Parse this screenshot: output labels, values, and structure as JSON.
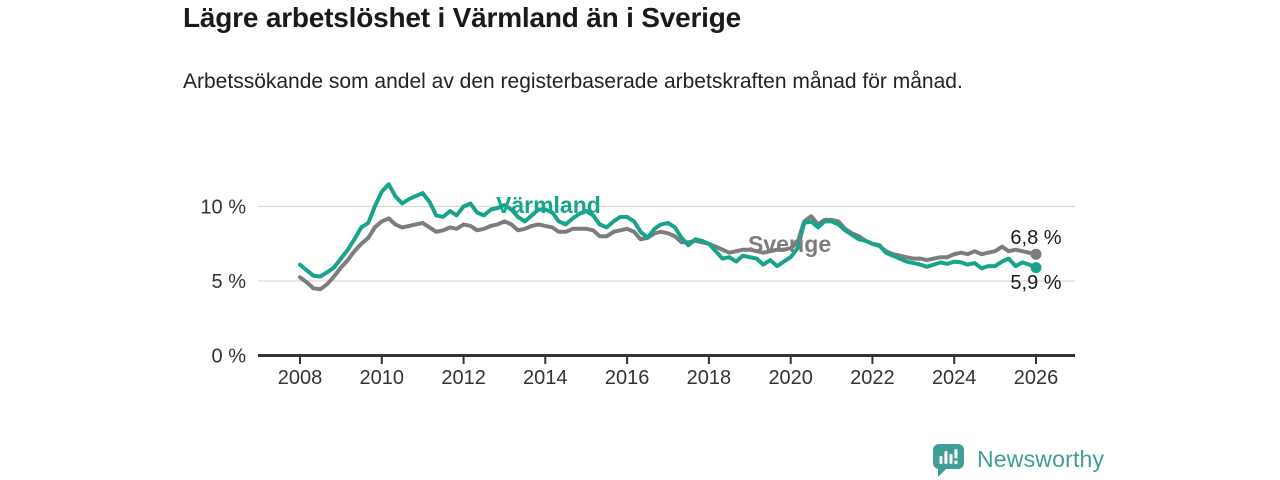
{
  "chart_data": {
    "type": "line",
    "title": "Lägre arbetslöshet i Värmland än i Sverige",
    "subtitle": "Arbetssökande som andel av den registerbaserade arbetskraften månad för månad.",
    "x_unit": "year, monthly observations",
    "xlim": [
      2007.0,
      2027.0
    ],
    "ylim": [
      0,
      12.5
    ],
    "grid": "horizontal gridlines at 5 % and 10 %, solid baseline at 0 %",
    "legend_position": "inline labels on lines",
    "x_tick_labels": [
      "2008",
      "2010",
      "2012",
      "2014",
      "2016",
      "2018",
      "2020",
      "2022",
      "2024",
      "2026"
    ],
    "x_ticks": [
      2008,
      2010,
      2012,
      2014,
      2016,
      2018,
      2020,
      2022,
      2024,
      2026
    ],
    "y_tick_labels": [
      "0 %",
      "5 %",
      "10 %"
    ],
    "y_ticks": [
      0,
      5,
      10
    ],
    "x": [
      2008,
      2008.17,
      2008.33,
      2008.5,
      2008.67,
      2008.83,
      2009,
      2009.17,
      2009.33,
      2009.5,
      2009.67,
      2009.83,
      2010,
      2010.17,
      2010.33,
      2010.5,
      2010.67,
      2010.83,
      2011,
      2011.17,
      2011.33,
      2011.5,
      2011.67,
      2011.83,
      2012,
      2012.17,
      2012.33,
      2012.5,
      2012.67,
      2012.83,
      2013,
      2013.17,
      2013.33,
      2013.5,
      2013.67,
      2013.83,
      2014,
      2014.17,
      2014.33,
      2014.5,
      2014.67,
      2014.83,
      2015,
      2015.17,
      2015.33,
      2015.5,
      2015.67,
      2015.83,
      2016,
      2016.17,
      2016.33,
      2016.5,
      2016.67,
      2016.83,
      2017,
      2017.17,
      2017.33,
      2017.5,
      2017.67,
      2017.83,
      2018,
      2018.17,
      2018.33,
      2018.5,
      2018.67,
      2018.83,
      2019,
      2019.17,
      2019.33,
      2019.5,
      2019.67,
      2019.83,
      2020,
      2020.17,
      2020.33,
      2020.5,
      2020.67,
      2020.83,
      2021,
      2021.17,
      2021.33,
      2021.5,
      2021.67,
      2021.83,
      2022,
      2022.17,
      2022.33,
      2022.5,
      2022.67,
      2022.83,
      2023,
      2023.17,
      2023.33,
      2023.5,
      2023.67,
      2023.83,
      2024,
      2024.17,
      2024.33,
      2024.5,
      2024.67,
      2024.83,
      2025,
      2025.17,
      2025.33,
      2025.5,
      2025.67,
      2025.83,
      2026
    ],
    "series": [
      {
        "name": "Värmland",
        "color": "#17a48b",
        "end_value": 5.9,
        "end_label": "5,9 %",
        "values": [
          6.1,
          5.7,
          5.35,
          5.3,
          5.6,
          5.9,
          6.5,
          7.1,
          7.8,
          8.6,
          8.9,
          10.0,
          11.0,
          11.5,
          10.7,
          10.2,
          10.5,
          10.7,
          10.9,
          10.3,
          9.4,
          9.3,
          9.7,
          9.4,
          10.0,
          10.2,
          9.6,
          9.4,
          9.8,
          9.9,
          10.1,
          9.8,
          9.3,
          9.0,
          9.4,
          9.8,
          9.8,
          9.6,
          9.0,
          8.8,
          9.2,
          9.5,
          9.7,
          9.4,
          8.8,
          8.6,
          9.0,
          9.3,
          9.3,
          9.0,
          8.3,
          7.9,
          8.5,
          8.8,
          8.9,
          8.6,
          7.9,
          7.4,
          7.8,
          7.7,
          7.5,
          7.0,
          6.5,
          6.6,
          6.3,
          6.7,
          6.6,
          6.5,
          6.1,
          6.4,
          6.0,
          6.3,
          6.6,
          7.2,
          8.9,
          9.0,
          8.6,
          9.0,
          9.0,
          8.8,
          8.4,
          8.1,
          7.8,
          7.7,
          7.5,
          7.4,
          6.9,
          6.7,
          6.5,
          6.3,
          6.2,
          6.1,
          5.95,
          6.1,
          6.25,
          6.15,
          6.3,
          6.25,
          6.1,
          6.2,
          5.85,
          6.0,
          6.0,
          6.3,
          6.5,
          6.0,
          6.25,
          6.1,
          5.9
        ]
      },
      {
        "name": "Sverige",
        "color": "#7d7d7d",
        "end_value": 6.8,
        "end_label": "6,8 %",
        "values": [
          5.25,
          4.9,
          4.5,
          4.45,
          4.8,
          5.3,
          5.9,
          6.4,
          7.0,
          7.5,
          7.9,
          8.6,
          9.0,
          9.2,
          8.8,
          8.6,
          8.7,
          8.8,
          8.9,
          8.6,
          8.3,
          8.4,
          8.6,
          8.5,
          8.8,
          8.7,
          8.4,
          8.5,
          8.7,
          8.8,
          9.0,
          8.8,
          8.4,
          8.5,
          8.7,
          8.8,
          8.7,
          8.6,
          8.3,
          8.3,
          8.5,
          8.5,
          8.5,
          8.4,
          8.0,
          8.0,
          8.3,
          8.4,
          8.5,
          8.3,
          7.8,
          7.9,
          8.2,
          8.3,
          8.2,
          8.0,
          7.6,
          7.6,
          7.7,
          7.6,
          7.5,
          7.3,
          7.1,
          6.9,
          7.0,
          7.1,
          7.1,
          7.0,
          6.9,
          7.0,
          7.1,
          7.1,
          7.2,
          7.6,
          9.0,
          9.35,
          8.8,
          9.1,
          9.1,
          9.0,
          8.5,
          8.2,
          8.0,
          7.7,
          7.5,
          7.35,
          7.0,
          6.8,
          6.7,
          6.6,
          6.5,
          6.5,
          6.4,
          6.5,
          6.6,
          6.6,
          6.8,
          6.9,
          6.8,
          7.0,
          6.8,
          6.9,
          7.0,
          7.3,
          7.0,
          7.1,
          7.0,
          6.9,
          6.8
        ]
      }
    ]
  },
  "footer": {
    "brand": "Newsworthy",
    "brand_color": "#3f9e96"
  }
}
